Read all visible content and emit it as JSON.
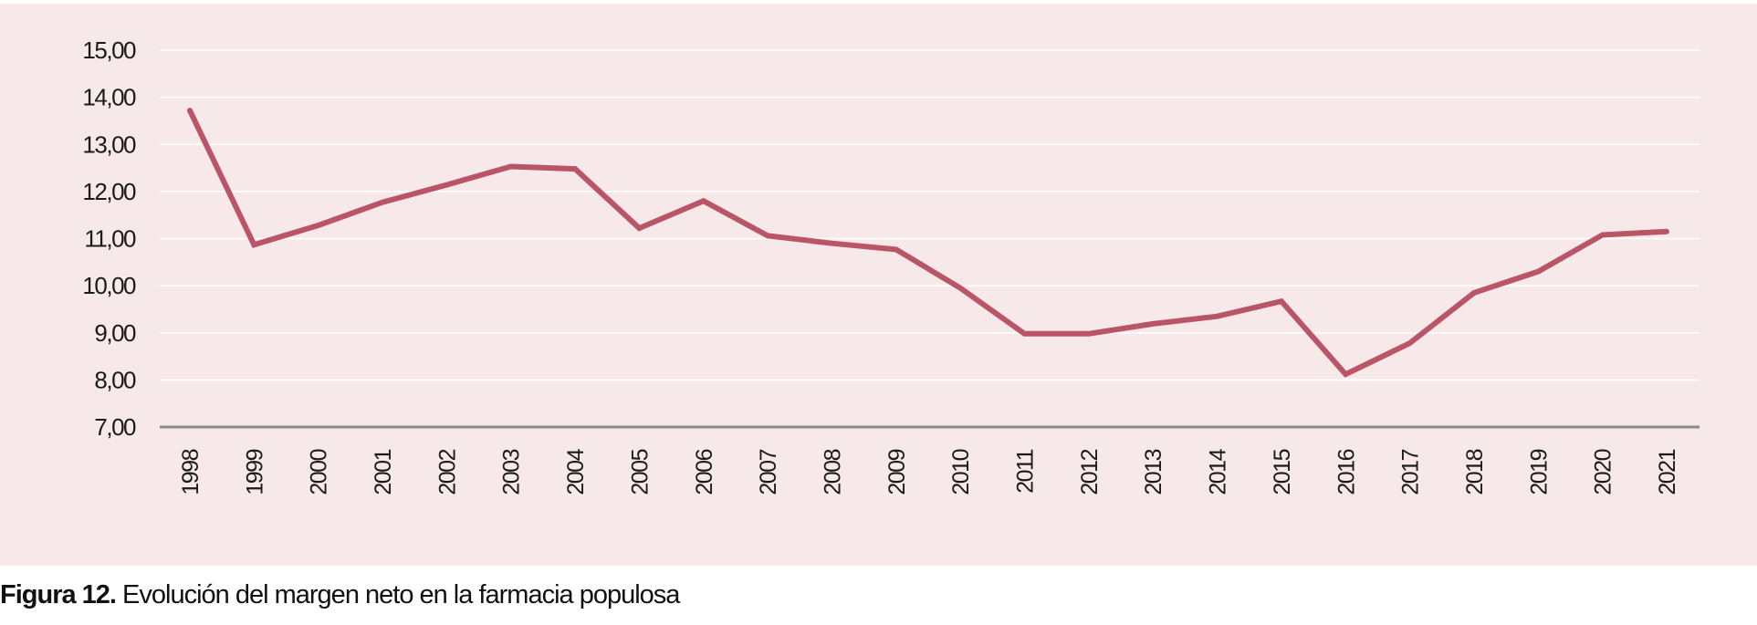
{
  "caption": {
    "label": "Figura 12.",
    "text": " Evolución del margen neto en la farmacia populosa"
  },
  "colors": {
    "background": "#f7e9e9",
    "line": "#b95567",
    "grid": "#ffffff",
    "axis": "#888888"
  },
  "chart_data": {
    "type": "line",
    "title": "",
    "xlabel": "",
    "ylabel": "",
    "ylim": [
      7,
      15
    ],
    "yticks": [
      "7,00",
      "8,00",
      "9,00",
      "10,00",
      "11,00",
      "12,00",
      "13,00",
      "14,00",
      "15,00"
    ],
    "categories": [
      "1998",
      "1999",
      "2000",
      "2001",
      "2002",
      "2003",
      "2004",
      "2005",
      "2006",
      "2007",
      "2008",
      "2009",
      "2010",
      "2011",
      "2012",
      "2013",
      "2014",
      "2015",
      "2016",
      "2017",
      "2018",
      "2019",
      "2020",
      "2021"
    ],
    "series": [
      {
        "values": [
          13.72,
          10.87,
          11.28,
          11.77,
          12.14,
          12.53,
          12.48,
          11.22,
          11.8,
          11.06,
          10.9,
          10.77,
          9.95,
          8.98,
          8.98,
          9.19,
          9.35,
          9.67,
          8.12,
          8.78,
          9.85,
          10.3,
          11.08,
          11.15
        ]
      }
    ],
    "grid": true,
    "legend": "none"
  }
}
